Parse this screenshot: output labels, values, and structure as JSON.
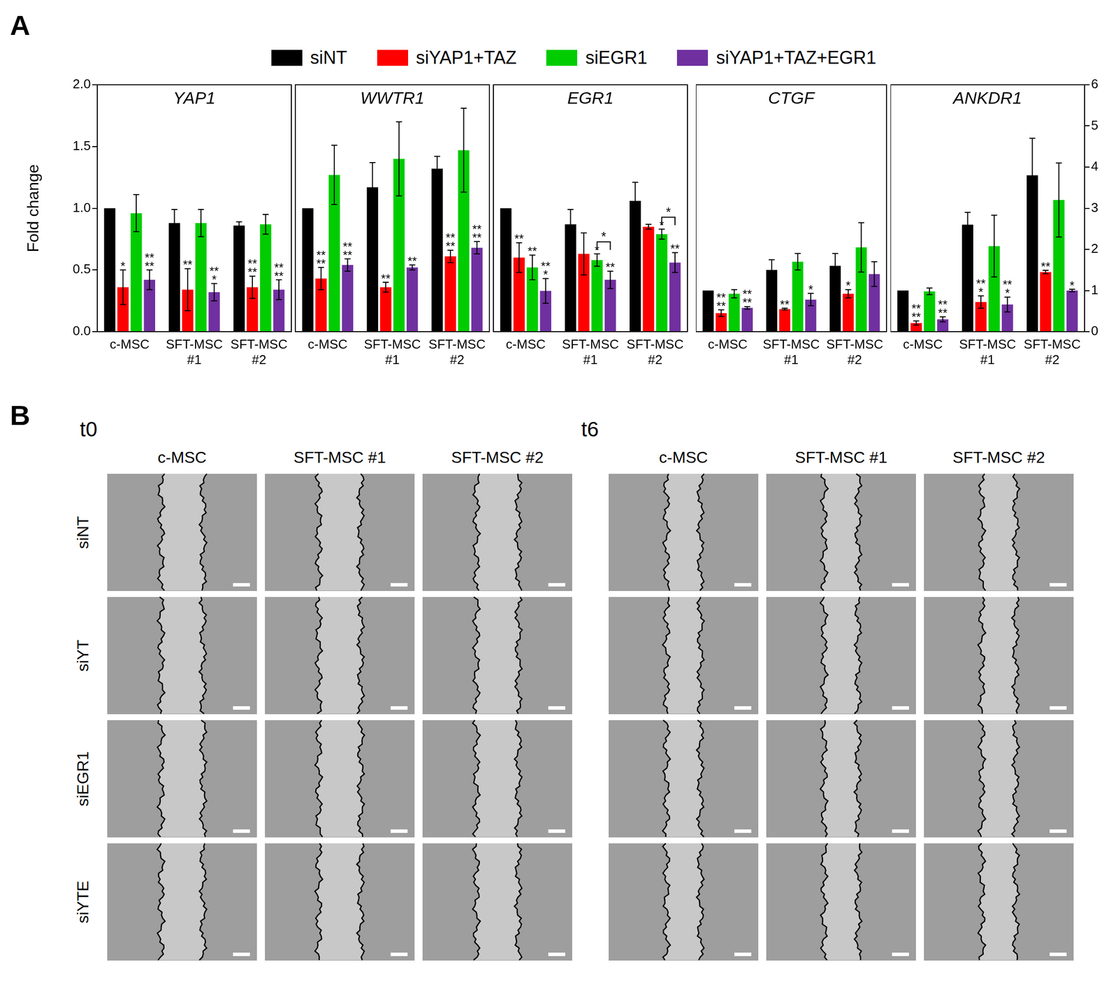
{
  "panel_labels": [
    "A",
    "B"
  ],
  "chart_data": [
    {
      "type": "bar",
      "title": "YAP1",
      "y_label": "Fold change",
      "grid": false,
      "legend": "top",
      "categories": [
        "c-MSC",
        "SFT-MSC #1",
        "SFT-MSC #2"
      ],
      "ylim": [
        0,
        2
      ],
      "yticks": [
        {
          "value": 0,
          "label": "0.0"
        },
        {
          "value": 0.5,
          "label": "0.5"
        },
        {
          "value": 1,
          "label": "1.0"
        },
        {
          "value": 1.5,
          "label": "1.5"
        },
        {
          "value": 2,
          "label": "2.0"
        }
      ],
      "series": [
        {
          "name": "siNT",
          "color": "#000000",
          "values": [
            1.0,
            0.88,
            0.86
          ],
          "errors": [
            null,
            0.11,
            0.03
          ],
          "significance": [
            null,
            null,
            null
          ]
        },
        {
          "name": "siYAP1+TAZ",
          "color": "#ff0000",
          "values": [
            0.36,
            0.34,
            0.36
          ],
          "errors": [
            0.14,
            0.17,
            0.09
          ],
          "significance": [
            "*",
            "**",
            "****"
          ]
        },
        {
          "name": "siEGR1",
          "color": "#00cc00",
          "values": [
            0.96,
            0.88,
            0.87
          ],
          "errors": [
            0.15,
            0.11,
            0.08
          ],
          "significance": [
            null,
            null,
            null
          ]
        },
        {
          "name": "siYAP1+TAZ+EGR1",
          "color": "#7030a0",
          "values": [
            0.42,
            0.32,
            0.34
          ],
          "errors": [
            0.08,
            0.07,
            0.08
          ],
          "significance": [
            "****",
            "***",
            "****"
          ]
        }
      ]
    },
    {
      "type": "bar",
      "title": "WWTR1",
      "grid": false,
      "tick_labels": "x",
      "categories": [
        "c-MSC",
        "SFT-MSC #1",
        "SFT-MSC #2"
      ],
      "ylim": [
        0,
        2
      ],
      "yticks": [
        {
          "value": 0,
          "label": "0.0"
        },
        {
          "value": 0.5,
          "label": "0.5"
        },
        {
          "value": 1,
          "label": "1.0"
        },
        {
          "value": 1.5,
          "label": "1.5"
        },
        {
          "value": 2,
          "label": "2.0"
        }
      ],
      "series": [
        {
          "name": "siNT",
          "color": "#000000",
          "values": [
            1.0,
            1.17,
            1.32
          ],
          "errors": [
            null,
            0.2,
            0.1
          ],
          "significance": [
            null,
            null,
            null
          ]
        },
        {
          "name": "siYAP1+TAZ",
          "color": "#ff0000",
          "values": [
            0.43,
            0.36,
            0.61
          ],
          "errors": [
            0.09,
            0.04,
            0.05
          ],
          "significance": [
            "****",
            "**",
            "****"
          ]
        },
        {
          "name": "siEGR1",
          "color": "#00cc00",
          "values": [
            1.27,
            1.4,
            1.47
          ],
          "errors": [
            0.24,
            0.3,
            0.34
          ],
          "significance": [
            null,
            null,
            null
          ]
        },
        {
          "name": "siYAP1+TAZ+EGR1",
          "color": "#7030a0",
          "values": [
            0.54,
            0.52,
            0.68
          ],
          "errors": [
            0.05,
            0.02,
            0.05
          ],
          "significance": [
            "****",
            "**",
            "****"
          ]
        }
      ]
    },
    {
      "type": "bar",
      "title": "EGR1",
      "grid": false,
      "tick_labels": "x",
      "categories": [
        "c-MSC",
        "SFT-MSC #1",
        "SFT-MSC #2"
      ],
      "ylim": [
        0,
        2
      ],
      "yticks": [
        {
          "value": 0,
          "label": "0.0"
        },
        {
          "value": 0.5,
          "label": "0.5"
        },
        {
          "value": 1,
          "label": "1.0"
        },
        {
          "value": 1.5,
          "label": "1.5"
        },
        {
          "value": 2,
          "label": "2.0"
        }
      ],
      "series": [
        {
          "name": "siNT",
          "color": "#000000",
          "values": [
            1.0,
            0.87,
            1.06
          ],
          "errors": [
            null,
            0.12,
            0.15
          ],
          "significance": [
            null,
            null,
            null
          ]
        },
        {
          "name": "siYAP1+TAZ",
          "color": "#ff0000",
          "values": [
            0.6,
            0.63,
            0.85
          ],
          "errors": [
            0.12,
            0.17,
            0.02
          ],
          "significance": [
            "**",
            null,
            null
          ]
        },
        {
          "name": "siEGR1",
          "color": "#00cc00",
          "values": [
            0.52,
            0.58,
            0.79
          ],
          "errors": [
            0.1,
            0.05,
            0.04
          ],
          "significance": [
            "**",
            "*",
            "*"
          ]
        },
        {
          "name": "siYAP1+TAZ+EGR1",
          "color": "#7030a0",
          "values": [
            0.33,
            0.42,
            0.56
          ],
          "errors": [
            0.1,
            0.07,
            0.08
          ],
          "significance": [
            "***",
            "**",
            "**"
          ]
        }
      ],
      "comparisons": [
        {
          "category": "SFT-MSC #1",
          "series": [
            "siEGR1",
            "siYAP1+TAZ+EGR1"
          ],
          "label": "*"
        },
        {
          "category": "SFT-MSC #2",
          "series": [
            "siEGR1",
            "siYAP1+TAZ+EGR1"
          ],
          "label": "*"
        }
      ]
    },
    {
      "type": "bar",
      "title": "CTGF",
      "grid": false,
      "tick_labels": "x",
      "categories": [
        "c-MSC",
        "SFT-MSC #1",
        "SFT-MSC #2"
      ],
      "y2lim": [
        0,
        6
      ],
      "y2ticks": [
        0,
        1,
        2,
        3,
        4,
        5,
        6
      ],
      "series": [
        {
          "name": "siNT",
          "color": "#000000",
          "axis": "y2",
          "values": [
            1.0,
            1.5,
            1.6
          ],
          "errors": [
            null,
            0.25,
            0.3
          ],
          "significance": [
            null,
            null,
            null
          ]
        },
        {
          "name": "siYAP1+TAZ",
          "color": "#ff0000",
          "axis": "y2",
          "values": [
            0.45,
            0.55,
            0.92
          ],
          "errors": [
            0.08,
            0.02,
            0.1
          ],
          "significance": [
            "****",
            "**",
            "*"
          ]
        },
        {
          "name": "siEGR1",
          "color": "#00cc00",
          "axis": "y2",
          "values": [
            0.92,
            1.7,
            2.05
          ],
          "errors": [
            0.1,
            0.2,
            0.6
          ],
          "significance": [
            null,
            null,
            null
          ]
        },
        {
          "name": "siYAP1+TAZ+EGR1",
          "color": "#7030a0",
          "axis": "y2",
          "values": [
            0.58,
            0.78,
            1.4
          ],
          "errors": [
            0.03,
            0.15,
            0.3
          ],
          "significance": [
            "****",
            "*",
            null
          ]
        }
      ]
    },
    {
      "type": "bar",
      "title": "ANKDR1",
      "grid": false,
      "categories": [
        "c-MSC",
        "SFT-MSC #1",
        "SFT-MSC #2"
      ],
      "y2lim": [
        0,
        6
      ],
      "y2ticks": [
        0,
        1,
        2,
        3,
        4,
        5,
        6
      ],
      "series": [
        {
          "name": "siNT",
          "color": "#000000",
          "axis": "y2",
          "values": [
            1.0,
            2.6,
            3.8
          ],
          "errors": [
            null,
            0.3,
            0.9
          ],
          "significance": [
            null,
            null,
            null
          ]
        },
        {
          "name": "siYAP1+TAZ",
          "color": "#ff0000",
          "axis": "y2",
          "values": [
            0.21,
            0.72,
            1.45
          ],
          "errors": [
            0.05,
            0.15,
            0.04
          ],
          "significance": [
            "****",
            "***",
            "**"
          ]
        },
        {
          "name": "siEGR1",
          "color": "#00cc00",
          "axis": "y2",
          "values": [
            0.98,
            2.08,
            3.2
          ],
          "errors": [
            0.08,
            0.75,
            0.9
          ],
          "significance": [
            null,
            null,
            null
          ]
        },
        {
          "name": "siYAP1+TAZ+EGR1",
          "color": "#7030a0",
          "axis": "y2",
          "values": [
            0.3,
            0.66,
            1.0
          ],
          "errors": [
            0.06,
            0.18,
            0.03
          ],
          "significance": [
            "****",
            "***",
            "*"
          ]
        }
      ]
    }
  ],
  "image_grid": {
    "timepoints": [
      "t0",
      "t6"
    ],
    "columns": [
      "c-MSC",
      "SFT-MSC #1",
      "SFT-MSC #2"
    ],
    "rows": [
      "siNT",
      "siYT",
      "siEGR1",
      "siYTE"
    ]
  }
}
